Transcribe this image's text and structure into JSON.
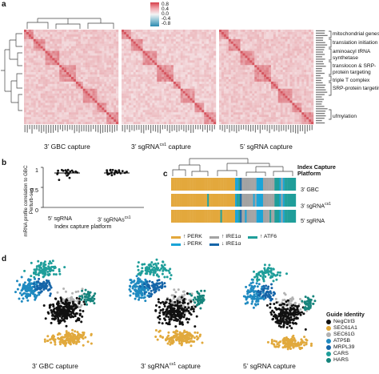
{
  "panel_a": {
    "label": "a",
    "colorbar": {
      "ticks": [
        "0.8",
        "0.4",
        "0.0",
        "-0.4",
        "-0.8"
      ],
      "colors": [
        "#d6404a",
        "#f2a7ae",
        "#f4f4f4",
        "#8dc2d4",
        "#2c8ab0"
      ]
    },
    "groups": [
      "mitochondrial genes",
      "translation initiation",
      "aminoacyl tRNA synthetase",
      "translocon & SRP-protein targeting",
      "triple T complex",
      "SRP-protein targeting",
      "ufmylation"
    ],
    "captions": [
      "3’ GBC capture",
      "3’ sgRNA",
      "cs1",
      " capture",
      "5’ sgRNA capture"
    ]
  },
  "panel_b": {
    "label": "b",
    "ylabel": "mRNA profile correlation to GBC Perturb-seq",
    "xlabel": "Index capture platform",
    "yticks": [
      "1",
      "0.5",
      "0"
    ],
    "categories": [
      "5’ sgRNA",
      "3’ sgRNAs",
      "cs1"
    ]
  },
  "panel_c": {
    "label": "c",
    "header": [
      "Index Capture",
      "Platform"
    ],
    "rows": [
      "3’ GBC",
      "3’ sgRNA",
      "cs1",
      "5’ sgRNA"
    ],
    "legend": [
      {
        "arrow": "↑",
        "text": "PERK",
        "color": "#e3a83c"
      },
      {
        "arrow": "↑",
        "text": "IRE1α",
        "color": "#a3a3a3"
      },
      {
        "arrow": "↑",
        "text": "ATF6",
        "color": "#1f9e9a"
      },
      {
        "arrow": "↓",
        "text": "PERK",
        "color": "#1aa4d7"
      },
      {
        "arrow": "↓",
        "text": "IRE1α",
        "color": "#1565a8"
      }
    ]
  },
  "panel_d": {
    "label": "d",
    "captions": [
      "3’ GBC capture",
      "3’ sgRNA",
      "cs1",
      " capture",
      "5’ sgRNA capture"
    ],
    "legend_title": "Guide Identity",
    "guides": [
      {
        "name": "NegCtrl3",
        "color": "#111111"
      },
      {
        "name": "SEC61A1",
        "color": "#e1a93c"
      },
      {
        "name": "SEC61G",
        "color": "#b3b3b3"
      },
      {
        "name": "ATP5B",
        "color": "#1f8ac0"
      },
      {
        "name": "MRPL39",
        "color": "#1565a8"
      },
      {
        "name": "CARS",
        "color": "#1f9e9a"
      },
      {
        "name": "HARS",
        "color": "#16847c"
      }
    ]
  }
}
